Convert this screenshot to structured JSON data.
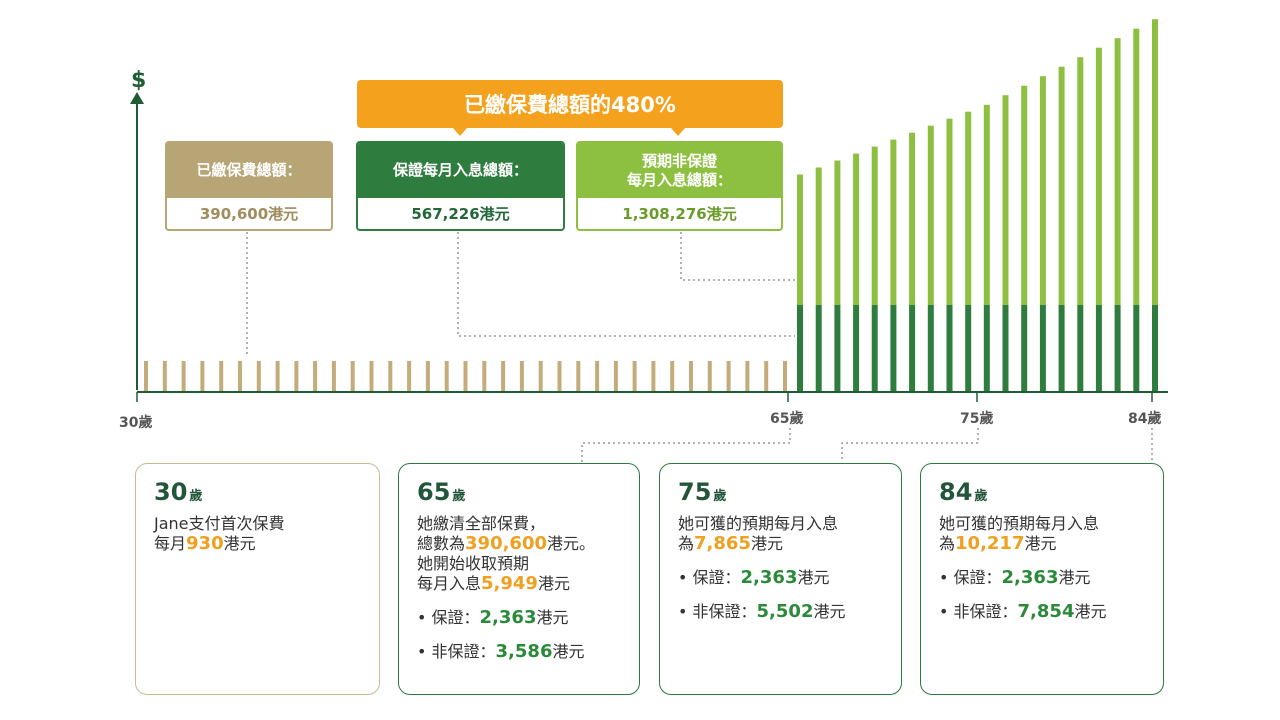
{
  "chart_data": {
    "type": "bar",
    "x_start_age": 30,
    "premium_years": {
      "from_age": 30,
      "to_age": 64,
      "monthly_premium": 930,
      "color": "#c4ab7a"
    },
    "payout_years": {
      "from_age": 65,
      "to_age": 84,
      "guaranteed_monthly": 2363,
      "nonguaranteed_monthly_at_65": 3586,
      "nonguaranteed_monthly_at_75": 5502,
      "nonguaranteed_monthly_at_84": 7854,
      "guaranteed_color": "#2e7d3e",
      "nonguaranteed_color": "#8dc040"
    },
    "y_axis_label": "$",
    "tick_labels": [
      {
        "age": 30,
        "text": "30歲"
      },
      {
        "age": 65,
        "text": "65歲"
      },
      {
        "age": 75,
        "text": "75歲"
      },
      {
        "age": 84,
        "text": "84歲"
      }
    ]
  },
  "banner": {
    "text": "已繳保費總額的480%",
    "color": "#f4a21d"
  },
  "summary_boxes": [
    {
      "title": "已繳保費總額：",
      "value": "390,600港元",
      "color": "#b8a575"
    },
    {
      "title": "保證每月入息總額：",
      "value": "567,226港元",
      "color": "#2e7d3e"
    },
    {
      "title": "預期非保證\n每月入息總額：",
      "value": "1,308,276港元",
      "color": "#8dc040"
    }
  ],
  "cards": [
    {
      "age": "30",
      "unit": "歲",
      "line1": "Jane支付首次保費",
      "line2_prefix": "每月",
      "line2_num": "930",
      "line2_suffix": "港元"
    },
    {
      "age": "65",
      "unit": "歲",
      "line1": "她繳清全部保費，",
      "line2_prefix": "總數為",
      "line2_num": "390,600",
      "line2_suffix": "港元。",
      "line3": "她開始收取預期",
      "line4_prefix": "每月入息",
      "line4_num": "5,949",
      "line4_suffix": "港元",
      "b1_label": "• 保證：",
      "b1_num": "2,363",
      "b1_suffix": "港元",
      "b2_label": "• 非保證：",
      "b2_num": "3,586",
      "b2_suffix": "港元"
    },
    {
      "age": "75",
      "unit": "歲",
      "line1": "她可獲的預期每月入息",
      "line2_prefix": "為",
      "line2_num": "7,865",
      "line2_suffix": "港元",
      "b1_label": "• 保證：",
      "b1_num": "2,363",
      "b1_suffix": "港元",
      "b2_label": "• 非保證：",
      "b2_num": "5,502",
      "b2_suffix": "港元"
    },
    {
      "age": "84",
      "unit": "歲",
      "line1": "她可獲的預期每月入息",
      "line2_prefix": "為",
      "line2_num": "10,217",
      "line2_suffix": "港元",
      "b1_label": "• 保證：",
      "b1_num": "2,363",
      "b1_suffix": "港元",
      "b2_label": "• 非保證：",
      "b2_num": "7,854",
      "b2_suffix": "港元"
    }
  ]
}
